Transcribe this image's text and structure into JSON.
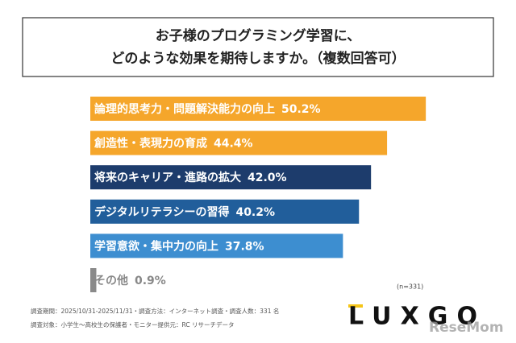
{
  "chart_data": {
    "type": "bar",
    "orientation": "horizontal",
    "title": [
      "お子様のプログラミング学習に、",
      "どのような効果を期待しますか。（複数回答可）"
    ],
    "categories": [
      "論理的思考力・問題解決能力の向上",
      "創造性・表現力の育成",
      "将来のキャリア・進路の拡大",
      "デジタルリテラシーの習得",
      "学習意欲・集中力の向上",
      "その他"
    ],
    "values": [
      50.2,
      44.4,
      42.0,
      40.2,
      37.8,
      0.9
    ],
    "value_labels": [
      "50.2%",
      "44.4%",
      "42.0%",
      "40.2%",
      "37.8%",
      "0.9%"
    ],
    "colors": [
      "#f5a62b",
      "#f5a62b",
      "#1d3c6c",
      "#215e9b",
      "#3d8ed0",
      "#8a8a8a"
    ]
  },
  "sample_note": "(n=331)",
  "footnotes": [
    "調査期間：2025/10/31-2025/11/31・調査方法：インターネット調査・調査人数：331 名",
    "調査対象：小学生～高校生の保護者・モニター提供元：RC リサーチデータ"
  ],
  "logo": "LUXGO",
  "watermark": "ReseMom"
}
